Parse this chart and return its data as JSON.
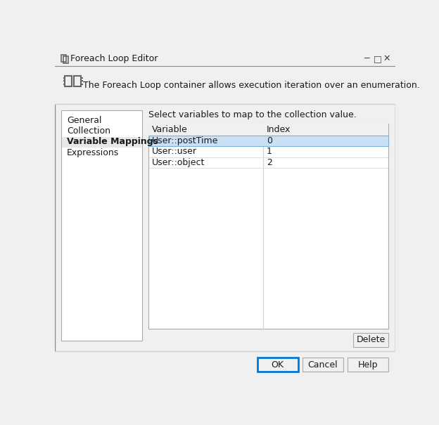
{
  "title_bar_text": "Foreach Loop Editor",
  "header_text": "The Foreach Loop container allows execution iteration over an enumeration.",
  "nav_items": [
    "General",
    "Collection",
    "Variable Mappings",
    "Expressions"
  ],
  "active_nav": "Variable Mappings",
  "active_nav_bg": "#e8e8e8",
  "table_instruction": "Select variables to map to the collection value.",
  "table_headers": [
    "Variable",
    "Index"
  ],
  "table_rows": [
    [
      "User::postTime",
      "0"
    ],
    [
      "User::user",
      "1"
    ],
    [
      "User::object",
      "2"
    ]
  ],
  "selected_row": 0,
  "button_delete": "Delete",
  "button_ok": "OK",
  "button_cancel": "Cancel",
  "button_help": "Help",
  "bg_color": "#f0f0f0",
  "nav_panel_bg": "#ffffff",
  "table_bg": "#ffffff",
  "table_header_bg": "#f0f0f0",
  "selected_row_bg": "#cce0f5",
  "selected_row_border": "#7ab0d8",
  "grid_line_color": "#d0d0d0",
  "text_color": "#1a1a1a",
  "border_color": "#aaaaaa",
  "dark_border": "#888888",
  "ok_button_border": "#0078d7",
  "title_icon_color": "#666666",
  "header_sep_color": "#d0d0d0",
  "bottom_sep_color": "#d0d0d0",
  "col_split": 210
}
